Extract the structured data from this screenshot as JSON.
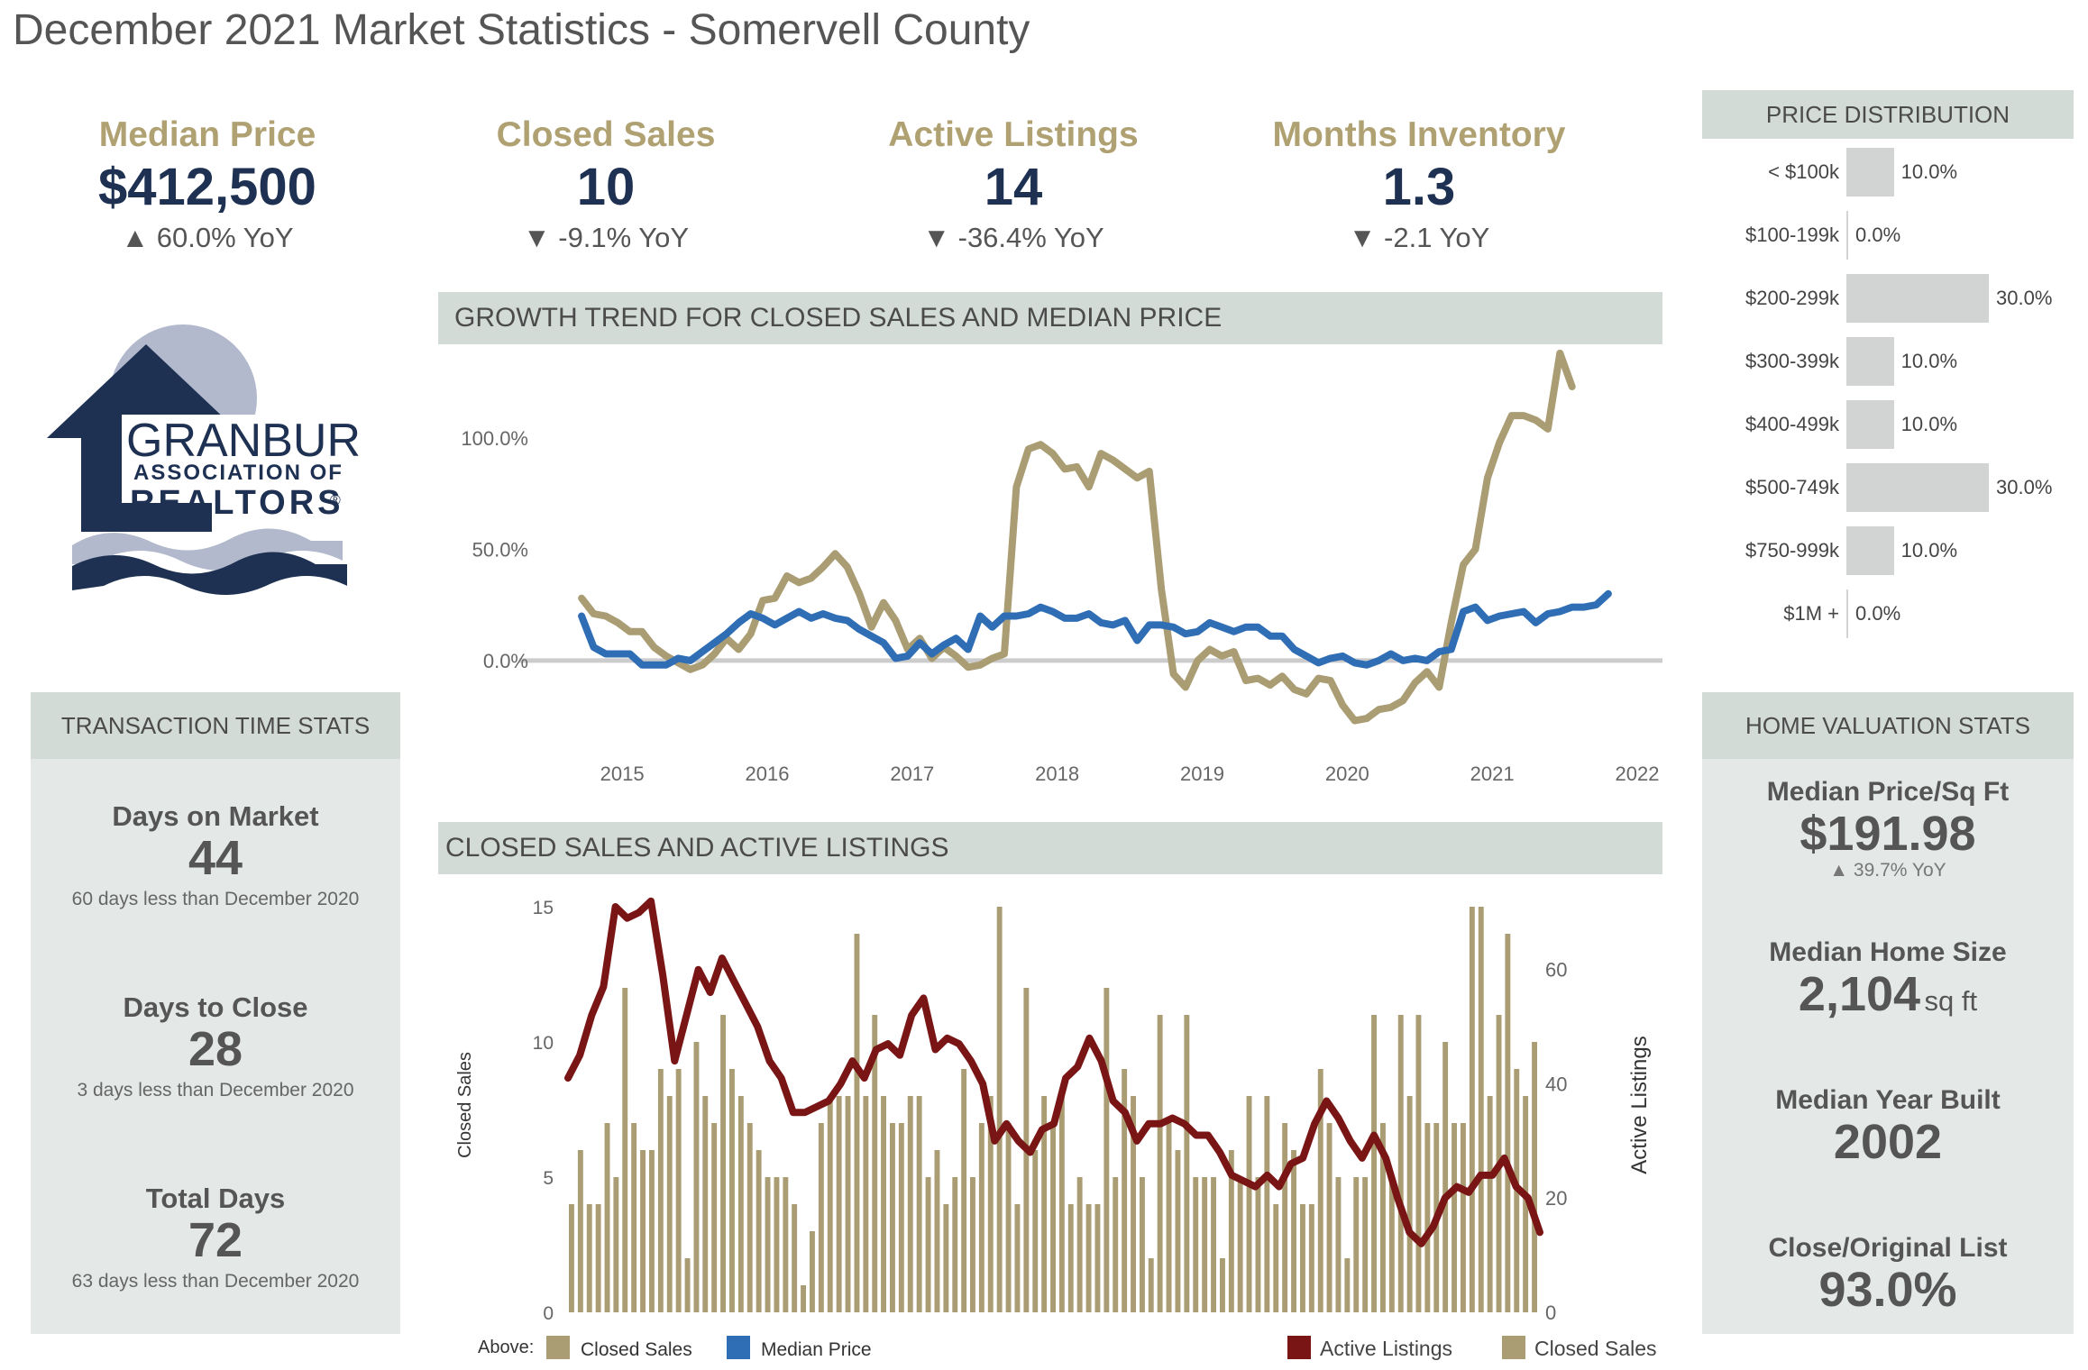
{
  "title": "December 2021 Market Statistics - Somervell County",
  "kpis": [
    {
      "label": "Median Price",
      "value": "$412,500",
      "yoy": "▲ 60.0% YoY"
    },
    {
      "label": "Closed Sales",
      "value": "10",
      "yoy": "▼ -9.1% YoY"
    },
    {
      "label": "Active Listings",
      "value": "14",
      "yoy": "▼ -36.4% YoY"
    },
    {
      "label": "Months Inventory",
      "value": "1.3",
      "yoy": "▼ -2.1 YoY"
    }
  ],
  "logo": {
    "line1": "GRANBURY",
    "line2": "ASSOCIATION OF",
    "line3": "REALTORS",
    "mark": "®"
  },
  "transaction": {
    "header": "TRANSACTION TIME STATS",
    "items": [
      {
        "label": "Days on Market",
        "value": "44",
        "sub": "60 days less than December 2020"
      },
      {
        "label": "Days to Close",
        "value": "28",
        "sub": "3 days less than December 2020"
      },
      {
        "label": "Total Days",
        "value": "72",
        "sub": "63 days less than December 2020"
      }
    ]
  },
  "price_distribution": {
    "header": "PRICE DISTRIBUTION",
    "rows": [
      {
        "label": "< $100k",
        "pct_text": "10.0%",
        "pct": 10
      },
      {
        "label": "$100-199k",
        "pct_text": "0.0%",
        "pct": 0
      },
      {
        "label": "$200-299k",
        "pct_text": "30.0%",
        "pct": 30
      },
      {
        "label": "$300-399k",
        "pct_text": "10.0%",
        "pct": 10
      },
      {
        "label": "$400-499k",
        "pct_text": "10.0%",
        "pct": 10
      },
      {
        "label": "$500-749k",
        "pct_text": "30.0%",
        "pct": 30
      },
      {
        "label": "$750-999k",
        "pct_text": "10.0%",
        "pct": 10
      },
      {
        "label": "$1M +",
        "pct_text": "0.0%",
        "pct": 0
      }
    ]
  },
  "home_valuation": {
    "header": "HOME VALUATION STATS",
    "items": [
      {
        "label": "Median Price/Sq Ft",
        "value": "$191.98",
        "unit": "",
        "sub": "▲ 39.7% YoY"
      },
      {
        "label": "Median Home Size",
        "value": "2,104",
        "unit": "sq ft",
        "sub": ""
      },
      {
        "label": "Median Year Built",
        "value": "2002",
        "unit": "",
        "sub": ""
      },
      {
        "label": "Close/Original List",
        "value": "93.0%",
        "unit": "",
        "sub": ""
      }
    ]
  },
  "legend": {
    "above": "Above:",
    "closed_sales": "Closed Sales",
    "median_price": "Median Price",
    "active_listings": "Active Listings",
    "closed_sales_2": "Closed Sales"
  },
  "colors": {
    "gold": "#aa9d74",
    "blue": "#2f6db5",
    "dark_red": "#7a1515",
    "navy": "#1e3152"
  },
  "chart_data": [
    {
      "type": "line",
      "title": "GROWTH TREND FOR CLOSED SALES AND MEDIAN PRICE",
      "x_ticks": [
        "2015",
        "2016",
        "2017",
        "2018",
        "2019",
        "2020",
        "2021",
        "2022"
      ],
      "y_ticks": [
        "0.0%",
        "50.0%",
        "100.0%"
      ],
      "ylim": [
        -30,
        140
      ],
      "x_start": 2014.72,
      "x_step": 0.0833,
      "series": [
        {
          "name": "Closed Sales",
          "color": "#aa9d74",
          "values": [
            28,
            21,
            20,
            17,
            13,
            13,
            6,
            2,
            -1,
            -4,
            -2,
            3,
            10,
            5,
            12,
            27,
            28,
            38,
            35,
            37,
            42,
            48,
            42,
            30,
            15,
            26,
            18,
            5,
            10,
            1,
            6,
            2,
            -3,
            -2,
            1,
            3,
            78,
            95,
            97,
            93,
            86,
            87,
            78,
            93,
            90,
            86,
            82,
            85,
            32,
            -6,
            -12,
            0,
            5,
            2,
            4,
            -9,
            -8,
            -11,
            -7,
            -13,
            -15,
            -8,
            -9,
            -20,
            -27,
            -26,
            -22,
            -21,
            -18,
            -10,
            -5,
            -12,
            17,
            43,
            50,
            82,
            98,
            110,
            110,
            108,
            104,
            138,
            123
          ]
        },
        {
          "name": "Median Price",
          "color": "#2f6db5",
          "values": [
            20,
            6,
            3,
            3,
            3,
            -2,
            -2,
            -2,
            1,
            0,
            4,
            8,
            12,
            17,
            21,
            19,
            16,
            19,
            22,
            19,
            21,
            19,
            18,
            14,
            11,
            8,
            1,
            2,
            8,
            3,
            7,
            10,
            5,
            20,
            15,
            20,
            20,
            21,
            24,
            22,
            19,
            19,
            21,
            17,
            16,
            18,
            9,
            16,
            16,
            15,
            12,
            13,
            17,
            15,
            13,
            15,
            15,
            11,
            11,
            5,
            2,
            -1,
            1,
            2,
            -1,
            -2,
            0,
            3,
            0,
            1,
            0,
            4,
            5,
            22,
            24,
            18,
            20,
            21,
            22,
            17,
            21,
            22,
            24,
            24,
            25,
            30
          ]
        }
      ]
    },
    {
      "type": "bar",
      "title": "CLOSED SALES AND ACTIVE LISTINGS",
      "ylabel": "Closed Sales",
      "y2label": "Active Listings",
      "y_ticks": [
        0,
        5,
        10,
        15
      ],
      "y2_ticks": [
        0,
        20,
        40,
        60
      ],
      "ylim": [
        0,
        15
      ],
      "y2lim": [
        0,
        71
      ],
      "series": [
        {
          "name": "Closed Sales",
          "color": "#aa9d74",
          "values": [
            4,
            6,
            4,
            4,
            7,
            5,
            12,
            7,
            6,
            6,
            9,
            8,
            9,
            2,
            10,
            8,
            7,
            11,
            9,
            8,
            7,
            6,
            5,
            5,
            5,
            4,
            1,
            3,
            7,
            8,
            8,
            8,
            14,
            8,
            11,
            8,
            7,
            7,
            8,
            8,
            5,
            6,
            4,
            5,
            9,
            5,
            7,
            8,
            15,
            7,
            4,
            12,
            6,
            8,
            7,
            8,
            4,
            5,
            4,
            4,
            12,
            5,
            9,
            8,
            5,
            2,
            11,
            7,
            6,
            11,
            5,
            5,
            5,
            2,
            6,
            5,
            8,
            5,
            8,
            4,
            7,
            6,
            4,
            4,
            9,
            7,
            5,
            2,
            5,
            5,
            11,
            7,
            5,
            11,
            8,
            11,
            7,
            7,
            10,
            7,
            7,
            15,
            15,
            8,
            11,
            14,
            9,
            8,
            10
          ]
        },
        {
          "name": "Active Listings",
          "color": "#7a1515",
          "values": [
            41,
            45,
            52,
            57,
            71,
            69,
            70,
            72,
            59,
            44,
            52,
            60,
            56,
            62,
            58,
            54,
            50,
            44,
            41,
            35,
            35,
            36,
            37,
            40,
            44,
            41,
            46,
            47,
            45,
            52,
            55,
            46,
            48,
            47,
            44,
            40,
            30,
            33,
            30,
            28,
            32,
            33,
            41,
            43,
            48,
            44,
            37,
            35,
            30,
            33,
            33,
            34,
            33,
            31,
            31,
            28,
            24,
            23,
            22,
            24,
            22,
            26,
            27,
            33,
            37,
            34,
            30,
            27,
            31,
            27,
            20,
            14,
            12,
            15,
            20,
            22,
            21,
            24,
            24,
            27,
            22,
            20,
            14
          ]
        }
      ]
    },
    {
      "type": "bar",
      "title": "PRICE DISTRIBUTION",
      "categories": [
        "< $100k",
        "$100-199k",
        "$200-299k",
        "$300-399k",
        "$400-499k",
        "$500-749k",
        "$750-999k",
        "$1M +"
      ],
      "values": [
        10.0,
        0.0,
        30.0,
        10.0,
        10.0,
        30.0,
        10.0,
        0.0
      ]
    }
  ]
}
